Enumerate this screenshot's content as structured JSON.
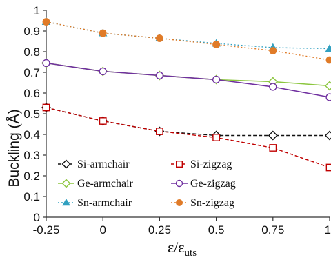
{
  "chart_data": {
    "type": "line",
    "title": "",
    "xlabel": "ε/ε",
    "xlabel_sub": "uts",
    "ylabel": "Buckling (Å)",
    "x": [
      -0.25,
      0,
      0.25,
      0.5,
      0.75,
      1
    ],
    "x_tick_labels": [
      "-0.25",
      "0",
      "0.25",
      "0.5",
      "0.75",
      "1"
    ],
    "xlim": [
      -0.25,
      1
    ],
    "ylim": [
      0,
      1
    ],
    "y_ticks": [
      0,
      0.1,
      0.2,
      0.3,
      0.4,
      0.5,
      0.6,
      0.7,
      0.8,
      0.9,
      1
    ],
    "y_tick_labels": [
      "0",
      "0.1",
      "0.2",
      "0.3",
      "0.4",
      "0.5",
      "0.6",
      "0.7",
      "0.8",
      "0.9",
      "1"
    ],
    "grid": false,
    "legend_position": "bottom-left",
    "series": [
      {
        "name": "Si-armchair",
        "values": [
          0.53,
          0.465,
          0.415,
          0.395,
          0.395,
          0.395
        ],
        "color": "#111111",
        "marker": "diamond-open",
        "line_style": "dashed"
      },
      {
        "name": "Si-zigzag",
        "values": [
          0.53,
          0.465,
          0.415,
          0.385,
          0.335,
          0.24
        ],
        "color": "#c00000",
        "marker": "square-open",
        "line_style": "dashed"
      },
      {
        "name": "Ge-armchair",
        "values": [
          0.745,
          0.705,
          0.685,
          0.665,
          0.655,
          0.635
        ],
        "color": "#8cc63f",
        "marker": "diamond-open",
        "line_style": "solid"
      },
      {
        "name": "Ge-zigzag",
        "values": [
          0.745,
          0.705,
          0.685,
          0.665,
          0.63,
          0.58
        ],
        "color": "#7030a0",
        "marker": "circle-open",
        "line_style": "solid"
      },
      {
        "name": "Sn-armchair",
        "values": [
          0.945,
          0.89,
          0.865,
          0.84,
          0.82,
          0.815
        ],
        "color": "#31a0c0",
        "marker": "triangle-filled",
        "line_style": "dotted"
      },
      {
        "name": "Sn-zigzag",
        "values": [
          0.945,
          0.89,
          0.865,
          0.835,
          0.805,
          0.76
        ],
        "color": "#e07b28",
        "marker": "circle-filled",
        "line_style": "dotted"
      }
    ]
  }
}
